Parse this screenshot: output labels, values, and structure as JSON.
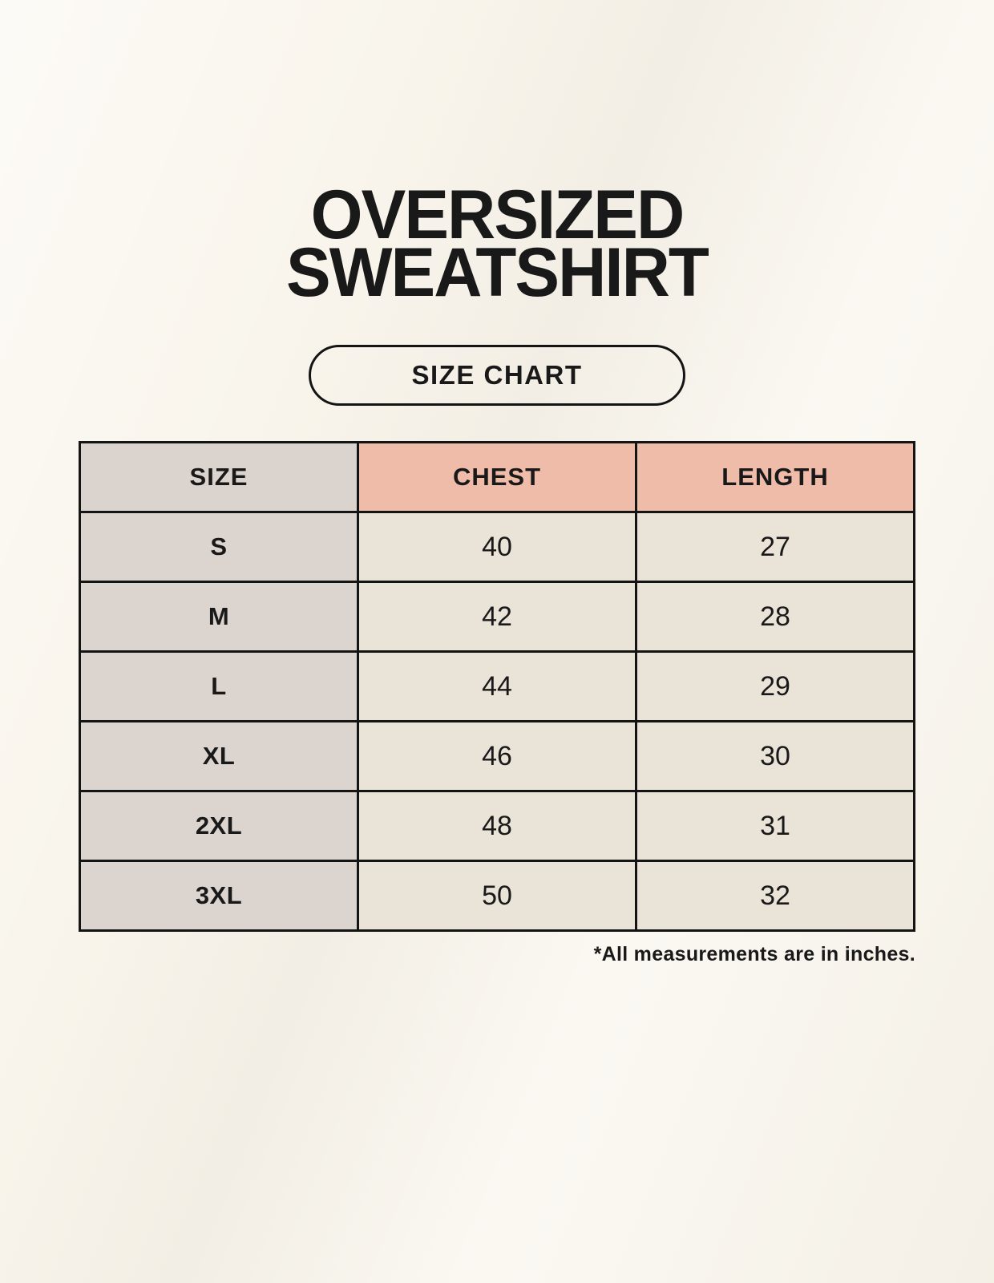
{
  "page": {
    "title_line1": "OVERSIZED",
    "title_line2": "SWEATSHIRT",
    "badge_label": "SIZE CHART",
    "footnote": "*All measurements are in inches."
  },
  "table": {
    "headers": [
      "SIZE",
      "CHEST",
      "LENGTH"
    ],
    "rows": [
      {
        "size": "S",
        "chest": "40",
        "length": "27"
      },
      {
        "size": "M",
        "chest": "42",
        "length": "28"
      },
      {
        "size": "L",
        "chest": "44",
        "length": "29"
      },
      {
        "size": "XL",
        "chest": "46",
        "length": "30"
      },
      {
        "size": "2XL",
        "chest": "48",
        "length": "31"
      },
      {
        "size": "3XL",
        "chest": "50",
        "length": "32"
      }
    ]
  },
  "colors": {
    "background": "#f9f5ec",
    "header_size_bg": "#dbd4ce",
    "header_measure_bg": "#f0bcaa",
    "row_label_bg": "#dcd5cf",
    "cell_bg": "#eae3d8",
    "border": "#141414",
    "text": "#191919"
  }
}
